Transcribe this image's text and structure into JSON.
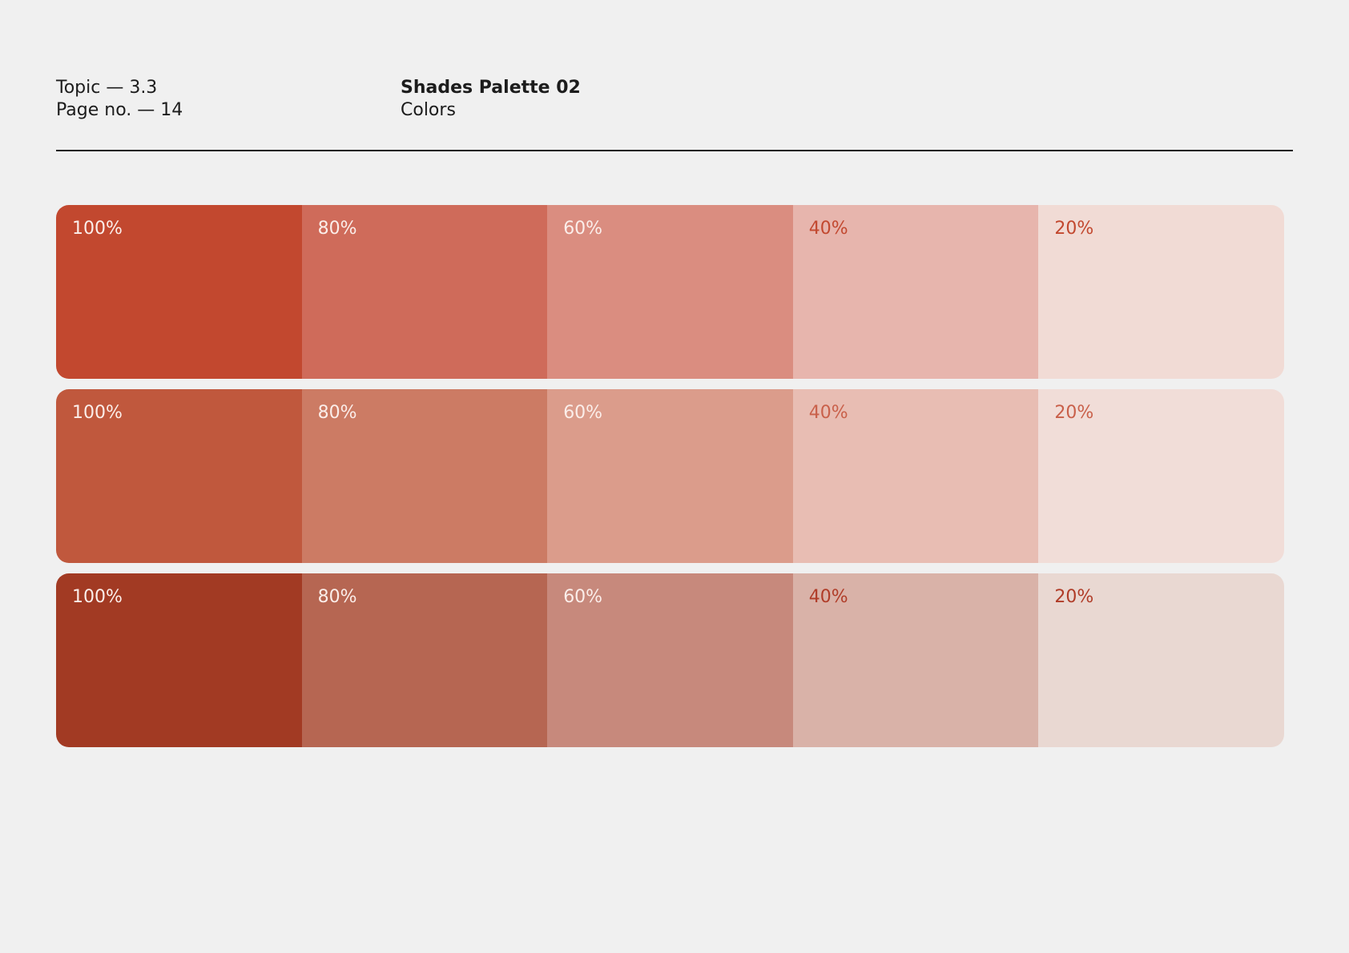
{
  "header": {
    "topic": "Topic — 3.3",
    "page": "Page no. — 14",
    "title": "Shades Palette 02",
    "subtitle": "Colors"
  },
  "rows": [
    {
      "accent": "#c2482f",
      "swatches": [
        {
          "label": "100%",
          "color": "#c2482f"
        },
        {
          "label": "80%",
          "color": "#cf6b5a"
        },
        {
          "label": "60%",
          "color": "#da8d80"
        },
        {
          "label": "40%",
          "color": "#e7b5ad"
        },
        {
          "label": "20%",
          "color": "#f1dbd5"
        }
      ]
    },
    {
      "accent": "#c9604a",
      "swatches": [
        {
          "label": "100%",
          "color": "#c0583d"
        },
        {
          "label": "80%",
          "color": "#cc7b64"
        },
        {
          "label": "60%",
          "color": "#db9c8b"
        },
        {
          "label": "40%",
          "color": "#e8bdb3"
        },
        {
          "label": "20%",
          "color": "#f1ddd8"
        }
      ]
    },
    {
      "accent": "#b03c28",
      "swatches": [
        {
          "label": "100%",
          "color": "#a23a23"
        },
        {
          "label": "80%",
          "color": "#b66652"
        },
        {
          "label": "60%",
          "color": "#c7897c"
        },
        {
          "label": "40%",
          "color": "#d9b2a8"
        },
        {
          "label": "20%",
          "color": "#e9d8d2"
        }
      ]
    }
  ]
}
